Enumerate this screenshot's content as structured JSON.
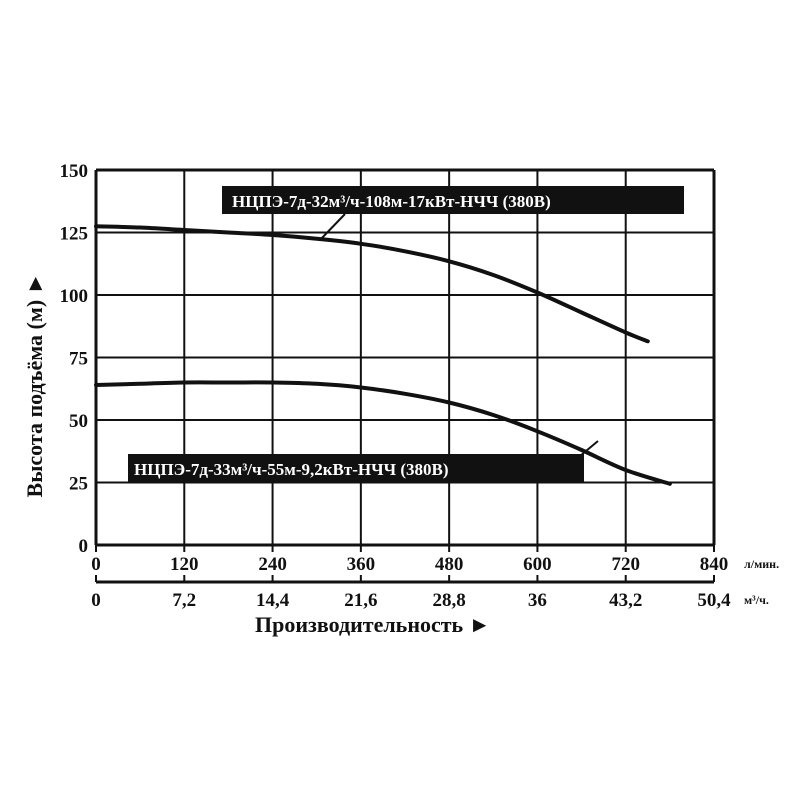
{
  "chart_data": {
    "type": "line",
    "ylabel": "Высота подъёма (м) ►",
    "xlabel": "Производительность ►",
    "x_unit_top": "л/мин.",
    "x_unit_bottom": "м³/ч.",
    "ylim": [
      0,
      150
    ],
    "xlim": [
      0,
      840
    ],
    "yticks": [
      "0",
      "25",
      "50",
      "75",
      "100",
      "125",
      "150"
    ],
    "xticks_top": [
      "0",
      "120",
      "240",
      "360",
      "480",
      "600",
      "720",
      "840"
    ],
    "xticks_bottom": [
      "0",
      "7,2",
      "14,4",
      "21,6",
      "28,8",
      "36",
      "43,2",
      "50,4"
    ],
    "grid": true,
    "series": [
      {
        "name": "НЦПЭ-7д-32м³/ч-108м-17кВт-НЧЧ (380В)",
        "x": [
          0,
          60,
          120,
          180,
          240,
          300,
          360,
          420,
          480,
          540,
          600,
          660,
          720,
          750
        ],
        "y": [
          127.5,
          127,
          126,
          125,
          124,
          122.5,
          120.5,
          117.5,
          113.5,
          108,
          101,
          93,
          85,
          81.5
        ]
      },
      {
        "name": "НЦПЭ-7д-33м³/ч-55м-9,2кВт-НЧЧ (380В)",
        "x": [
          0,
          60,
          120,
          180,
          240,
          300,
          360,
          420,
          480,
          540,
          600,
          660,
          720,
          780
        ],
        "y": [
          64,
          64.5,
          65,
          65,
          65,
          64.5,
          63,
          60.5,
          57,
          52,
          45.5,
          38,
          30,
          24.5
        ]
      }
    ]
  }
}
